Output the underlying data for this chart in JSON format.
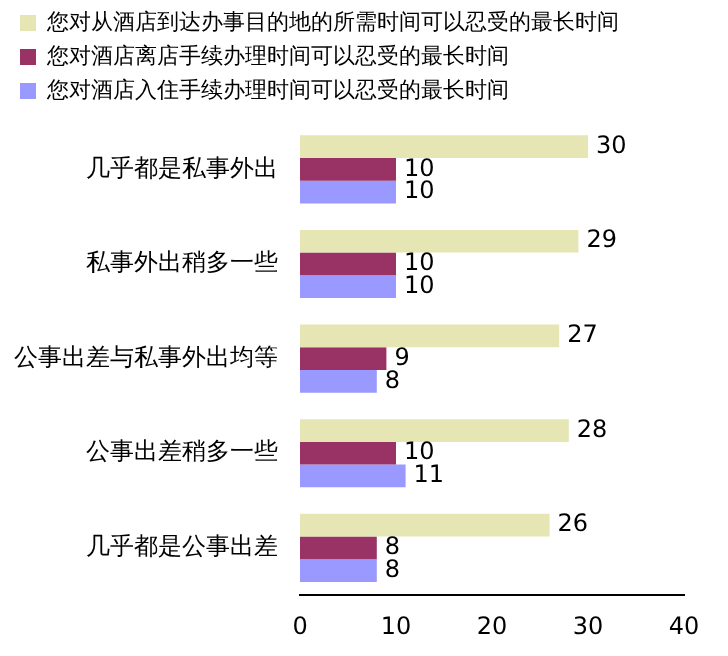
{
  "chart_data": {
    "type": "bar",
    "orientation": "horizontal",
    "categories": [
      "几乎都是私事外出",
      "私事外出稍多一些",
      "公事出差与私事外出均等",
      "公事出差稍多一些",
      "几乎都是公事出差"
    ],
    "series": [
      {
        "name": "您对从酒店到达办事目的地的所需时间可以忍受的最长时间",
        "color": "#e6e6b4",
        "values": [
          30,
          29,
          27,
          28,
          26
        ]
      },
      {
        "name": "您对酒店离店手续办理时间可以忍受的最长时间",
        "color": "#993366",
        "values": [
          10,
          10,
          9,
          10,
          8
        ]
      },
      {
        "name": "您对酒店入住手续办理时间可以忍受的最长时间",
        "color": "#9999ff",
        "values": [
          10,
          10,
          8,
          11,
          8
        ]
      }
    ],
    "xlim": [
      0,
      40
    ],
    "xticks": [
      0,
      10,
      20,
      30,
      40
    ],
    "grid": false,
    "legend": "top left",
    "data_labels": true
  }
}
